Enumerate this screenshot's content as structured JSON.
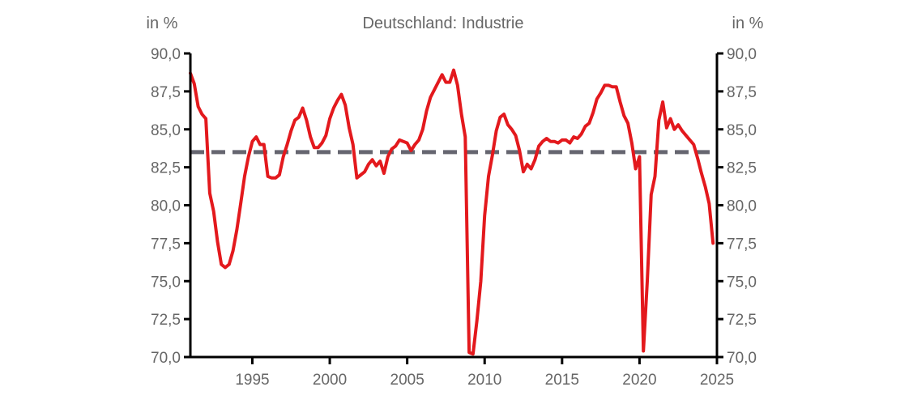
{
  "chart_data": {
    "type": "line",
    "title": "Deutschland: Industrie",
    "ylabel_left": "in %",
    "ylabel_right": "in %",
    "xlim": [
      1991.0,
      2025.0
    ],
    "ylim": [
      70,
      90
    ],
    "xticks": [
      1995,
      2000,
      2005,
      2010,
      2015,
      2020,
      2025
    ],
    "yticks": [
      "70,0",
      "72,5",
      "75,0",
      "77,5",
      "80,0",
      "82,5",
      "85,0",
      "87,5",
      "90,0"
    ],
    "grid": false,
    "colors": {
      "series": "#e3191d",
      "average": "#666670",
      "axis": "#000000",
      "text": "#666666"
    },
    "series": [
      {
        "values": [
          [
            1991.0,
            88.7
          ],
          [
            1991.25,
            88.0
          ],
          [
            1991.5,
            86.5
          ],
          [
            1991.75,
            86.0
          ],
          [
            1992.0,
            85.7
          ],
          [
            1992.25,
            80.8
          ],
          [
            1992.5,
            79.6
          ],
          [
            1992.75,
            77.6
          ],
          [
            1993.0,
            76.1
          ],
          [
            1993.25,
            75.9
          ],
          [
            1993.5,
            76.1
          ],
          [
            1993.75,
            77.0
          ],
          [
            1994.0,
            78.4
          ],
          [
            1994.25,
            80.1
          ],
          [
            1994.5,
            81.9
          ],
          [
            1994.75,
            83.2
          ],
          [
            1995.0,
            84.2
          ],
          [
            1995.25,
            84.5
          ],
          [
            1995.5,
            84.0
          ],
          [
            1995.75,
            84.0
          ],
          [
            1996.0,
            81.9
          ],
          [
            1996.25,
            81.8
          ],
          [
            1996.5,
            81.8
          ],
          [
            1996.75,
            82.0
          ],
          [
            1997.0,
            83.2
          ],
          [
            1997.25,
            84.0
          ],
          [
            1997.5,
            84.9
          ],
          [
            1997.75,
            85.6
          ],
          [
            1998.0,
            85.8
          ],
          [
            1998.25,
            86.4
          ],
          [
            1998.5,
            85.6
          ],
          [
            1998.75,
            84.5
          ],
          [
            1999.0,
            83.8
          ],
          [
            1999.25,
            83.8
          ],
          [
            1999.5,
            84.1
          ],
          [
            1999.75,
            84.6
          ],
          [
            2000.0,
            85.7
          ],
          [
            2000.25,
            86.4
          ],
          [
            2000.5,
            86.9
          ],
          [
            2000.75,
            87.3
          ],
          [
            2001.0,
            86.6
          ],
          [
            2001.25,
            85.1
          ],
          [
            2001.5,
            84.0
          ],
          [
            2001.75,
            81.8
          ],
          [
            2002.0,
            82.0
          ],
          [
            2002.25,
            82.2
          ],
          [
            2002.5,
            82.7
          ],
          [
            2002.75,
            83.0
          ],
          [
            2003.0,
            82.6
          ],
          [
            2003.25,
            82.9
          ],
          [
            2003.5,
            82.1
          ],
          [
            2003.75,
            83.2
          ],
          [
            2004.0,
            83.7
          ],
          [
            2004.25,
            83.9
          ],
          [
            2004.5,
            84.3
          ],
          [
            2004.75,
            84.2
          ],
          [
            2005.0,
            84.1
          ],
          [
            2005.25,
            83.6
          ],
          [
            2005.5,
            84.0
          ],
          [
            2005.75,
            84.3
          ],
          [
            2006.0,
            85.0
          ],
          [
            2006.25,
            86.2
          ],
          [
            2006.5,
            87.1
          ],
          [
            2006.75,
            87.6
          ],
          [
            2007.0,
            88.1
          ],
          [
            2007.25,
            88.6
          ],
          [
            2007.5,
            88.1
          ],
          [
            2007.75,
            88.1
          ],
          [
            2008.0,
            88.9
          ],
          [
            2008.25,
            87.9
          ],
          [
            2008.5,
            86.0
          ],
          [
            2008.75,
            84.5
          ],
          [
            2009.0,
            70.3
          ],
          [
            2009.25,
            70.2
          ],
          [
            2009.5,
            72.4
          ],
          [
            2009.75,
            75.0
          ],
          [
            2010.0,
            79.3
          ],
          [
            2010.25,
            81.9
          ],
          [
            2010.5,
            83.3
          ],
          [
            2010.75,
            84.9
          ],
          [
            2011.0,
            85.8
          ],
          [
            2011.25,
            86.0
          ],
          [
            2011.5,
            85.3
          ],
          [
            2011.75,
            85.0
          ],
          [
            2012.0,
            84.6
          ],
          [
            2012.25,
            83.6
          ],
          [
            2012.5,
            82.2
          ],
          [
            2012.75,
            82.7
          ],
          [
            2013.0,
            82.4
          ],
          [
            2013.25,
            83.0
          ],
          [
            2013.5,
            83.9
          ],
          [
            2013.75,
            84.2
          ],
          [
            2014.0,
            84.4
          ],
          [
            2014.25,
            84.2
          ],
          [
            2014.5,
            84.2
          ],
          [
            2014.75,
            84.1
          ],
          [
            2015.0,
            84.3
          ],
          [
            2015.25,
            84.3
          ],
          [
            2015.5,
            84.1
          ],
          [
            2015.75,
            84.5
          ],
          [
            2016.0,
            84.4
          ],
          [
            2016.25,
            84.7
          ],
          [
            2016.5,
            85.2
          ],
          [
            2016.75,
            85.4
          ],
          [
            2017.0,
            86.1
          ],
          [
            2017.25,
            87.0
          ],
          [
            2017.5,
            87.4
          ],
          [
            2017.75,
            87.9
          ],
          [
            2018.0,
            87.9
          ],
          [
            2018.25,
            87.8
          ],
          [
            2018.5,
            87.8
          ],
          [
            2018.75,
            86.8
          ],
          [
            2019.0,
            85.9
          ],
          [
            2019.25,
            85.4
          ],
          [
            2019.5,
            84.1
          ],
          [
            2019.75,
            82.4
          ],
          [
            2020.0,
            83.2
          ],
          [
            2020.25,
            70.4
          ],
          [
            2020.5,
            75.0
          ],
          [
            2020.75,
            80.7
          ],
          [
            2021.0,
            81.9
          ],
          [
            2021.25,
            85.6
          ],
          [
            2021.5,
            86.8
          ],
          [
            2021.75,
            85.1
          ],
          [
            2022.0,
            85.7
          ],
          [
            2022.25,
            85.0
          ],
          [
            2022.5,
            85.3
          ],
          [
            2022.75,
            84.9
          ],
          [
            2023.0,
            84.6
          ],
          [
            2023.25,
            84.3
          ],
          [
            2023.5,
            84.0
          ],
          [
            2023.75,
            83.1
          ],
          [
            2024.0,
            82.1
          ],
          [
            2024.25,
            81.2
          ],
          [
            2024.5,
            80.1
          ],
          [
            2024.75,
            77.5
          ]
        ]
      }
    ],
    "average": 83.5
  }
}
